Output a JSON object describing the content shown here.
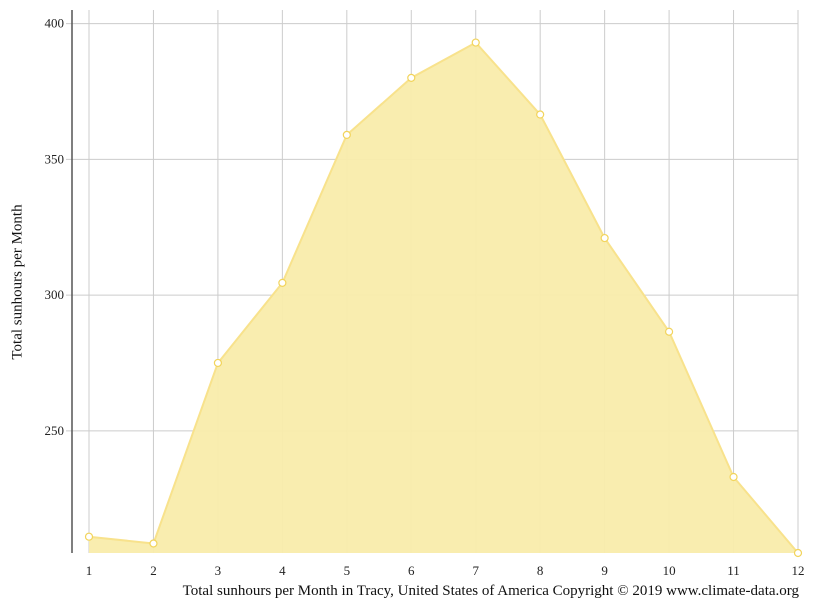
{
  "chart_data": {
    "type": "area",
    "ylabel": "Total sunhours per Month",
    "xlabel": "Total sunhours per Month in Tracy, United States of America Copyright © 2019 www.climate-data.org",
    "x": [
      1,
      2,
      3,
      4,
      5,
      6,
      7,
      8,
      9,
      10,
      11,
      12
    ],
    "series": [
      {
        "values": [
          211,
          208.5,
          275,
          304.5,
          359,
          380,
          393,
          366.5,
          321,
          286.5,
          233,
          205
        ]
      }
    ],
    "xlim": [
      1,
      12
    ],
    "ylim": [
      205,
      405
    ],
    "yticks": [
      250,
      300,
      350,
      400
    ],
    "grid": true,
    "colors": {
      "fill": "#f9ecab",
      "line": "#f8e28c",
      "marker_fill": "#ffffff",
      "grid": "#cccccc",
      "axis": "#555555"
    }
  }
}
